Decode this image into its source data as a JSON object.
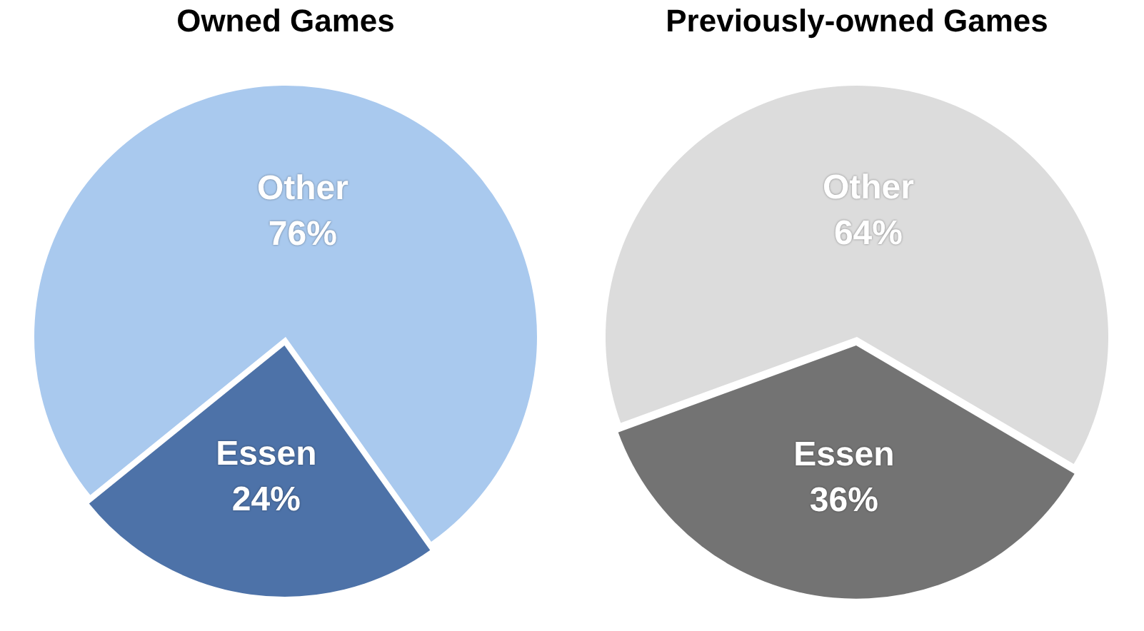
{
  "chart_data": [
    {
      "type": "pie",
      "title": "Owned Games",
      "categories": [
        "Other",
        "Essen"
      ],
      "values": [
        76,
        24
      ],
      "colors": [
        "#a9c9ee",
        "#4d72a8"
      ],
      "value_labels": [
        "76%",
        "24%"
      ]
    },
    {
      "type": "pie",
      "title": "Previously-owned Games",
      "categories": [
        "Other",
        "Essen"
      ],
      "values": [
        64,
        36
      ],
      "colors": [
        "#dcdcdc",
        "#737373"
      ],
      "value_labels": [
        "64%",
        "36%"
      ]
    }
  ]
}
